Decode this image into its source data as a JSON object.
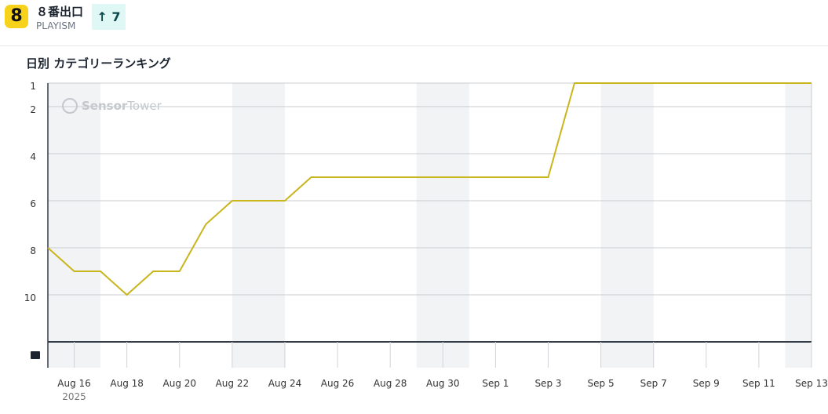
{
  "header": {
    "icon_label": "8",
    "title": "８番出口",
    "publisher": "PLAYISM",
    "rank_change": 7
  },
  "chart_data": {
    "type": "line",
    "title": "日別 カテゴリーランキング",
    "categories": [
      null,
      "Aug 16",
      null,
      "Aug 18",
      null,
      "Aug 20",
      null,
      "Aug 22",
      null,
      "Aug 24",
      null,
      "Aug 26",
      null,
      "Aug 28",
      null,
      "Aug 30",
      null,
      "Sep 1",
      null,
      "Sep 3",
      null,
      "Sep 5",
      null,
      "Sep 7",
      null,
      "Sep 9",
      null,
      "Sep 11",
      null,
      "Sep 13"
    ],
    "year_label": "2025",
    "series": [
      {
        "color": "#c9b51c",
        "values": [
          8,
          9,
          9,
          10,
          9,
          9,
          7,
          6,
          6,
          6,
          5,
          5,
          5,
          5,
          5,
          5,
          5,
          5,
          5,
          5,
          1,
          1,
          1,
          1,
          1,
          1,
          1,
          1,
          1,
          1
        ]
      }
    ],
    "ylim": [
      1,
      12
    ],
    "y_inverted": true,
    "yticks": [
      1,
      2,
      4,
      6,
      8,
      10
    ],
    "grid": true,
    "watermark": [
      "Sensor",
      "Tower"
    ]
  }
}
